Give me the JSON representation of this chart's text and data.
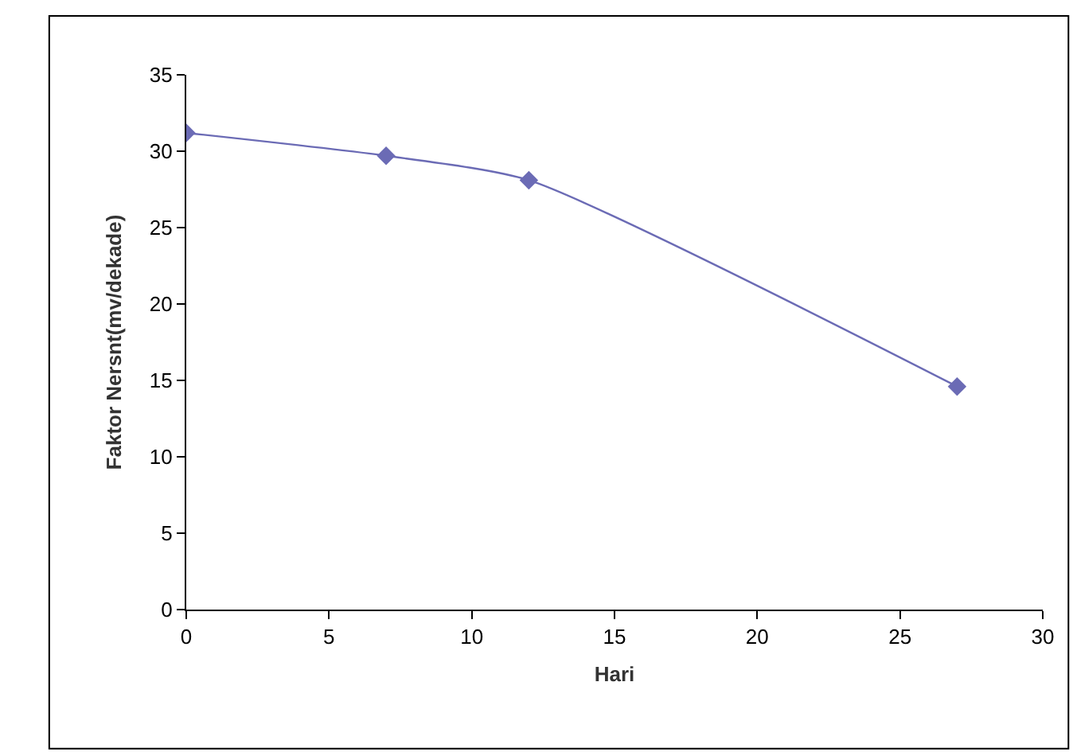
{
  "chart_data": {
    "type": "line",
    "xlabel": "Hari",
    "ylabel": "Faktor Nersnt(mv/dekade)",
    "x": [
      0,
      7,
      12,
      27
    ],
    "series": [
      {
        "color": "#6b6bb5",
        "values": [
          31.2,
          29.7,
          28.1,
          14.6
        ]
      }
    ],
    "xlim": [
      0,
      30
    ],
    "xticks": [
      0,
      5,
      10,
      15,
      20,
      25,
      30
    ],
    "ylim": [
      0,
      35
    ],
    "yticks": [
      0,
      5,
      10,
      15,
      20,
      25,
      30,
      35
    ],
    "legend": false,
    "marker": "diamond",
    "line_style": "solid"
  }
}
